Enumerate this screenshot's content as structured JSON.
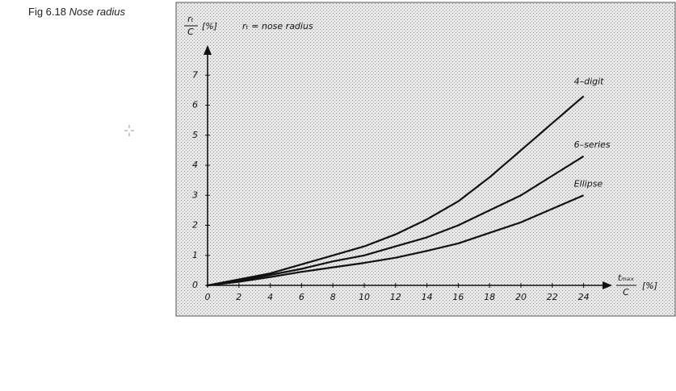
{
  "chart_data": {
    "type": "line",
    "figure_label": "Fig 6.18",
    "title": "Nose radius",
    "ylabel_numerator": "rₜ",
    "ylabel_denominator": "C",
    "ylabel_unit": "[%]",
    "annotation": "rₜ  =  nose radius",
    "xlabel_numerator": "tₘₐₓ",
    "xlabel_denominator": "C",
    "xlabel_unit": "[%]",
    "x": [
      0,
      2,
      4,
      6,
      8,
      10,
      12,
      14,
      16,
      18,
      20,
      22,
      24
    ],
    "series": [
      {
        "name": "4–digit",
        "color": "#111111",
        "values": [
          0,
          0.2,
          0.4,
          0.7,
          1.0,
          1.3,
          1.7,
          2.2,
          2.8,
          3.6,
          4.5,
          5.4,
          6.3
        ]
      },
      {
        "name": "6–series",
        "color": "#111111",
        "values": [
          0,
          0.15,
          0.35,
          0.55,
          0.8,
          1.0,
          1.3,
          1.6,
          2.0,
          2.5,
          3.0,
          3.65,
          4.3
        ]
      },
      {
        "name": "Ellipse",
        "color": "#111111",
        "values": [
          0,
          0.12,
          0.28,
          0.45,
          0.6,
          0.75,
          0.92,
          1.15,
          1.4,
          1.75,
          2.1,
          2.55,
          3.0
        ]
      }
    ],
    "xlim": [
      0,
      25
    ],
    "ylim": [
      0,
      8
    ],
    "xticks": [
      0,
      2,
      4,
      6,
      8,
      10,
      12,
      14,
      16,
      18,
      20,
      22,
      24
    ],
    "yticks": [
      0,
      1,
      2,
      3,
      4,
      5,
      6,
      7
    ]
  }
}
